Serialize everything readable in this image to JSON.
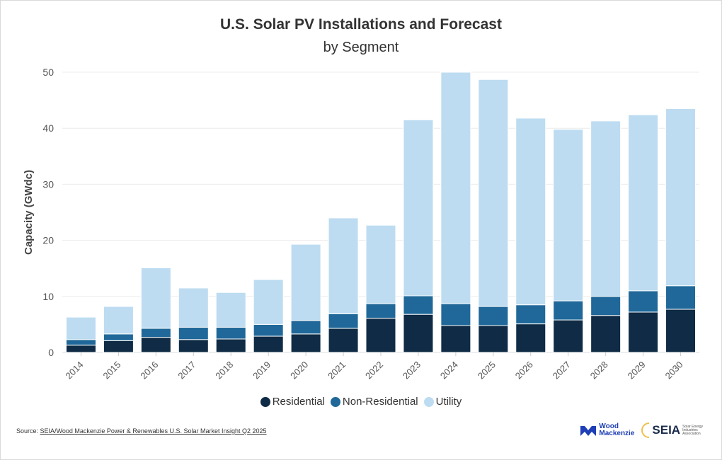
{
  "chart_data": {
    "type": "bar",
    "stacked": true,
    "title": "U.S. Solar PV Installations and Forecast",
    "subtitle": "by Segment",
    "xlabel": "",
    "ylabel": "Capacity (GWdc)",
    "ylim": [
      0,
      50
    ],
    "yticks": [
      0,
      10,
      20,
      30,
      40,
      50
    ],
    "grid": true,
    "legend_position": "bottom",
    "categories": [
      "2014",
      "2015",
      "2016",
      "2017",
      "2018",
      "2019",
      "2020",
      "2021",
      "2022",
      "2023",
      "2024",
      "2025",
      "2026",
      "2027",
      "2028",
      "2029",
      "2030"
    ],
    "series": [
      {
        "name": "Residential",
        "color": "#0f2b45",
        "values": [
          1.3,
          2.1,
          2.7,
          2.3,
          2.4,
          2.9,
          3.3,
          4.3,
          6.1,
          6.8,
          4.8,
          4.8,
          5.1,
          5.8,
          6.6,
          7.2,
          7.7
        ]
      },
      {
        "name": "Non-Residential",
        "color": "#1f6899",
        "values": [
          1.0,
          1.2,
          1.6,
          2.2,
          2.1,
          2.1,
          2.4,
          2.6,
          2.6,
          3.3,
          3.9,
          3.4,
          3.4,
          3.4,
          3.4,
          3.8,
          4.2
        ]
      },
      {
        "name": "Utility",
        "color": "#bddcf1",
        "values": [
          4.0,
          4.9,
          10.8,
          7.0,
          6.2,
          8.0,
          13.6,
          17.1,
          14.0,
          31.4,
          41.3,
          40.5,
          33.3,
          30.6,
          31.3,
          31.4,
          31.6
        ]
      }
    ]
  },
  "footer": {
    "source_prefix": "Source: ",
    "source_link": "SEIA/Wood Mackenzie Power & Renewables U.S. Solar Market Insight Q2 2025",
    "logo_woodmac": "Wood Mackenzie",
    "logo_seia": "SEIA",
    "logo_seia_sub": "Solar Energy Industries Association"
  }
}
